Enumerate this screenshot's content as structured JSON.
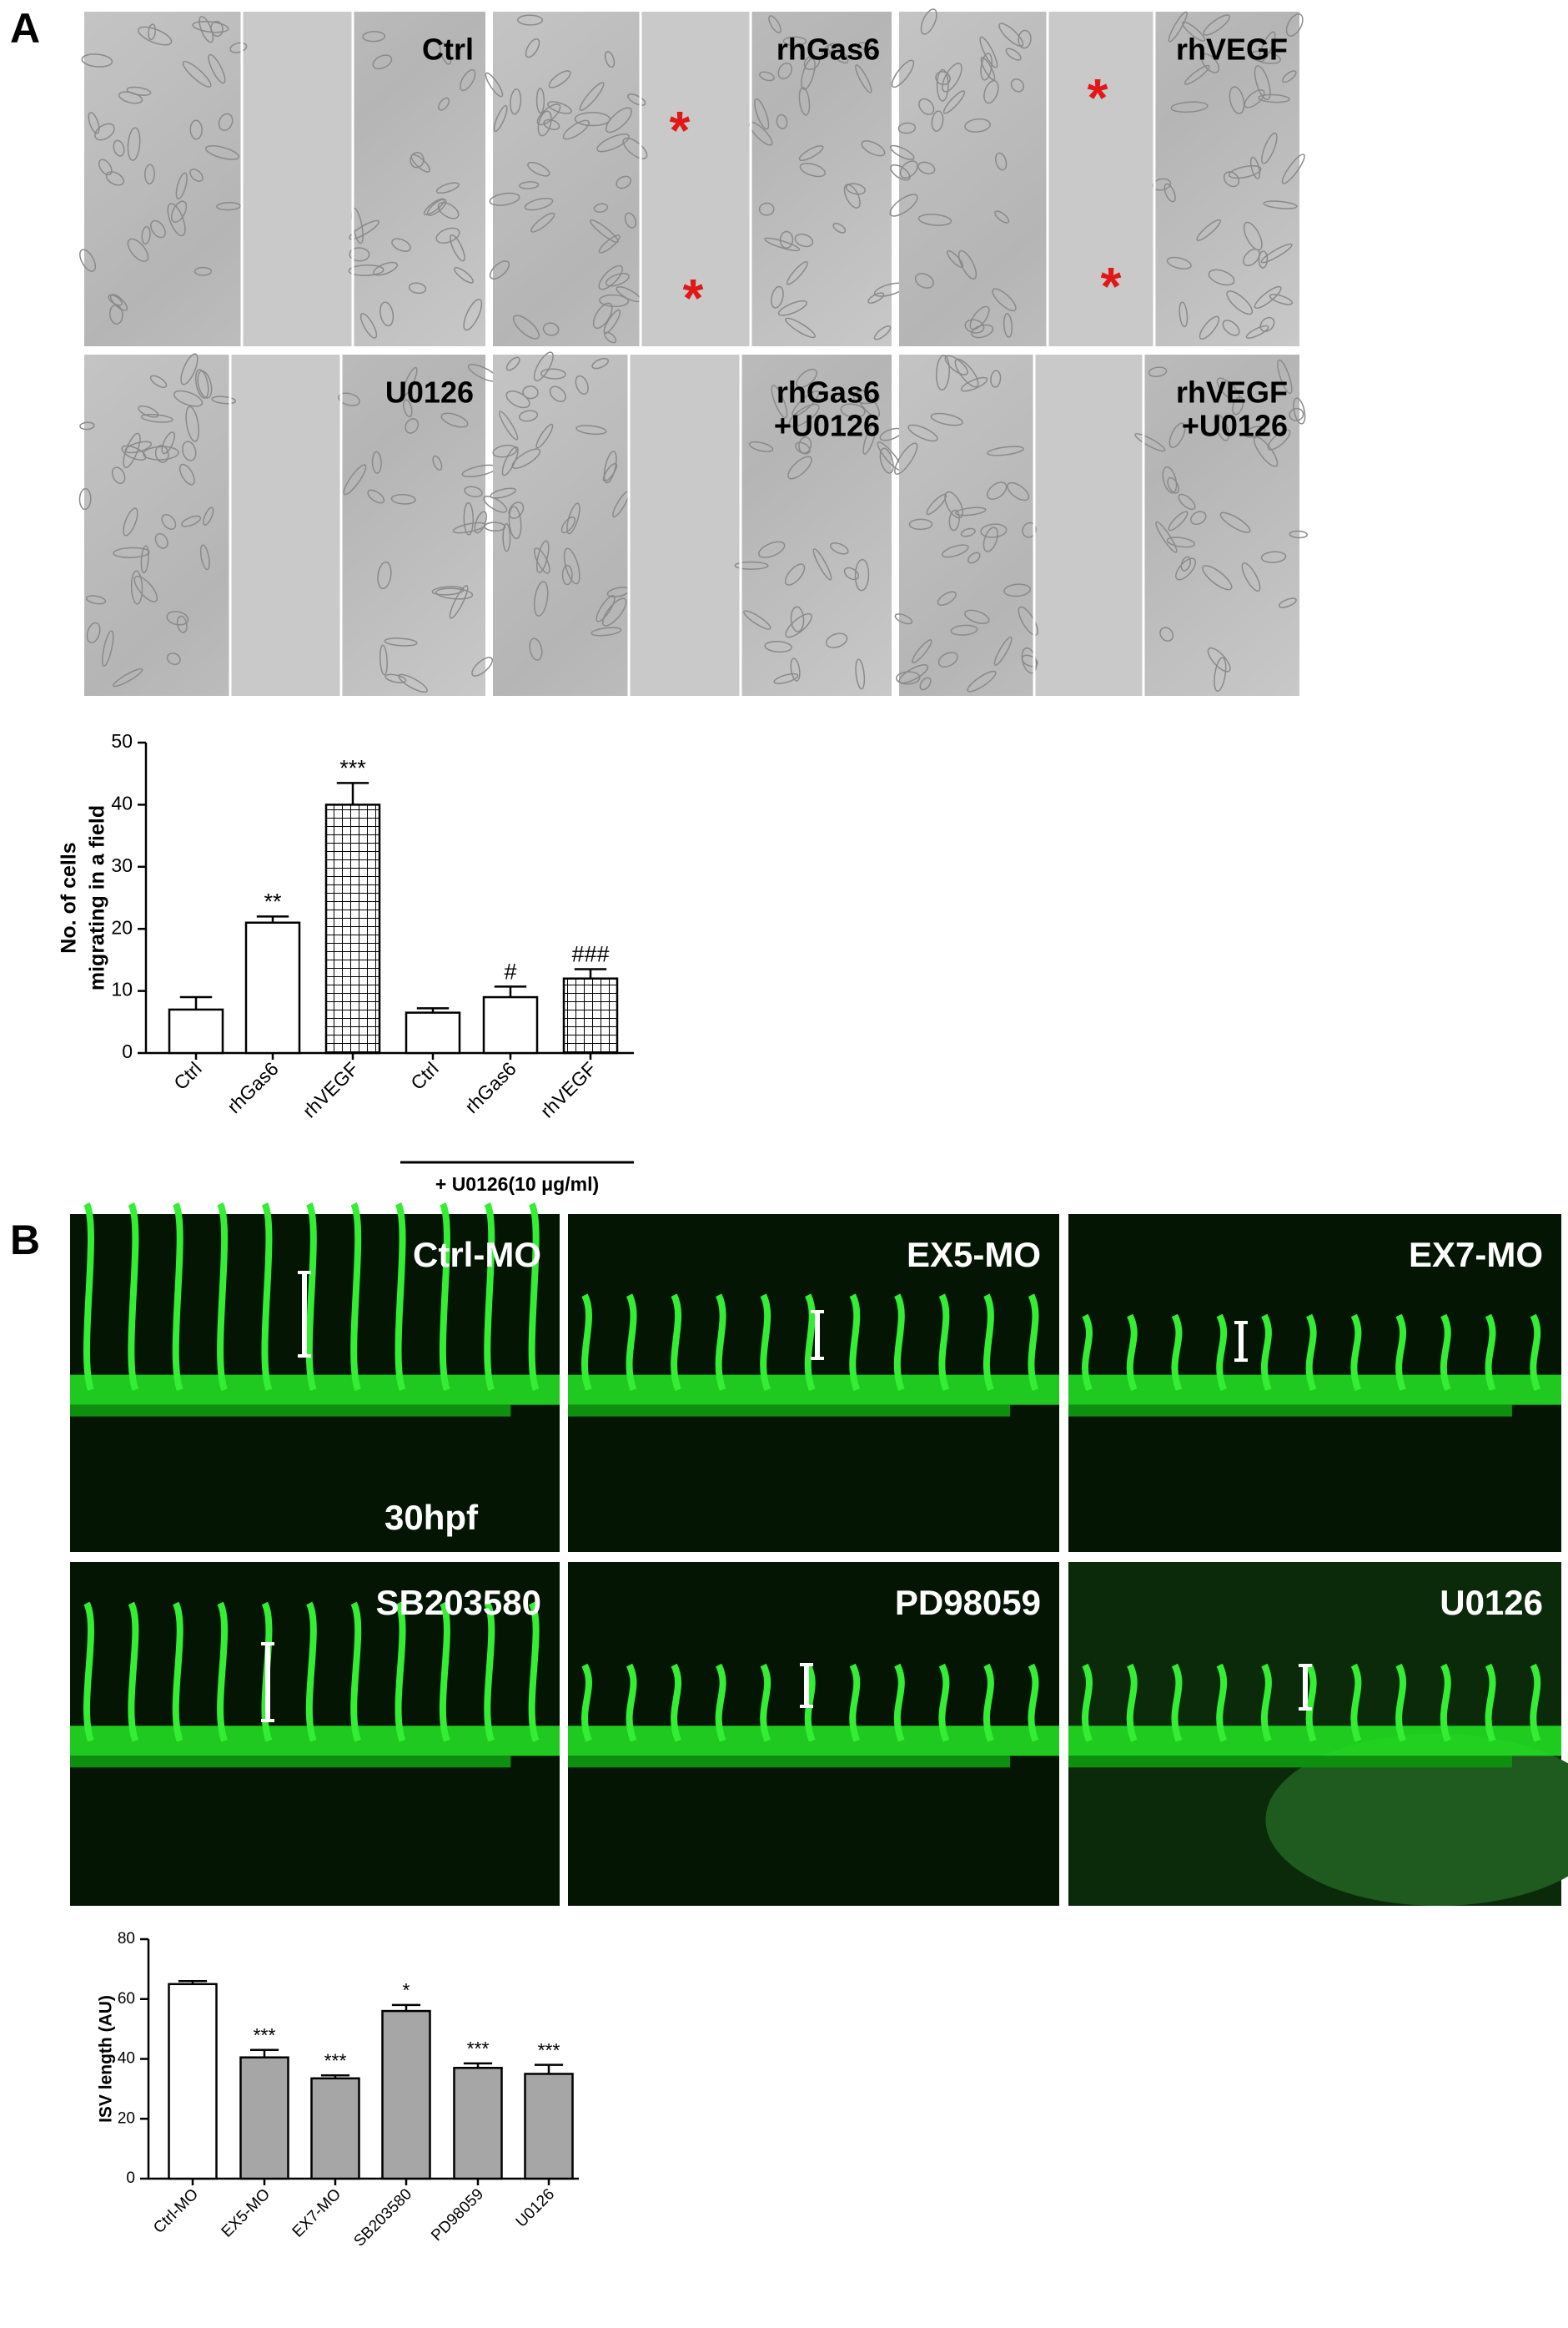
{
  "panel_a": {
    "label": "A",
    "images": [
      {
        "label": [
          "Ctrl"
        ]
      },
      {
        "label": [
          "rhGas6"
        ],
        "marks": [
          "*",
          "*"
        ]
      },
      {
        "label": [
          "rhVEGF"
        ],
        "marks": [
          "*",
          "*"
        ]
      },
      {
        "label": [
          "U0126"
        ]
      },
      {
        "label": [
          "rhGas6",
          "+U0126"
        ]
      },
      {
        "label": [
          "rhVEGF",
          "+U0126"
        ]
      }
    ]
  },
  "panel_b": {
    "label": "B",
    "images": [
      {
        "label": "Ctrl-MO",
        "stage": "30hpf"
      },
      {
        "label": "EX5-MO"
      },
      {
        "label": "EX7-MO"
      },
      {
        "label": "SB203580"
      },
      {
        "label": "PD98059"
      },
      {
        "label": "U0126"
      }
    ]
  },
  "chart_data": [
    {
      "type": "bar",
      "y_label": [
        "No. of cells",
        "migrating in a field"
      ],
      "categories": [
        "Ctrl",
        "rhGas6",
        "rhVEGF",
        "Ctrl",
        "rhGas6",
        "rhVEGF"
      ],
      "values": [
        7,
        21,
        40,
        6.5,
        9,
        12
      ],
      "errors": [
        2,
        1,
        3.5,
        0.7,
        1.7,
        1.5
      ],
      "annotations": [
        null,
        "**",
        "***",
        null,
        "#",
        "###"
      ],
      "colors": [
        "#ffffff",
        "#ffffff",
        "#ffffff",
        "#ffffff",
        "#ffffff",
        "#ffffff"
      ],
      "hatch": [
        false,
        false,
        true,
        false,
        false,
        true
      ],
      "group_label": "+ U0126(10 μg/ml)",
      "ylim": [
        0,
        50
      ],
      "yticks": [
        0,
        10,
        20,
        30,
        40,
        50
      ]
    },
    {
      "type": "bar",
      "y_label": [
        "ISV length (AU)"
      ],
      "categories": [
        "Ctrl-MO",
        "EX5-MO",
        "EX7-MO",
        "SB203580",
        "PD98059",
        "U0126"
      ],
      "values": [
        65,
        40.5,
        33.5,
        56,
        37,
        35
      ],
      "errors": [
        1,
        2.5,
        1,
        2,
        1.5,
        3
      ],
      "annotations": [
        null,
        "***",
        "***",
        "*",
        "***",
        "***"
      ],
      "colors": [
        "#ffffff",
        "#a6a6a6",
        "#a6a6a6",
        "#a6a6a6",
        "#a6a6a6",
        "#a6a6a6"
      ],
      "hatch": [
        false,
        false,
        false,
        false,
        false,
        false
      ],
      "ylim": [
        0,
        80
      ],
      "yticks": [
        0,
        20,
        40,
        60,
        80
      ]
    }
  ]
}
